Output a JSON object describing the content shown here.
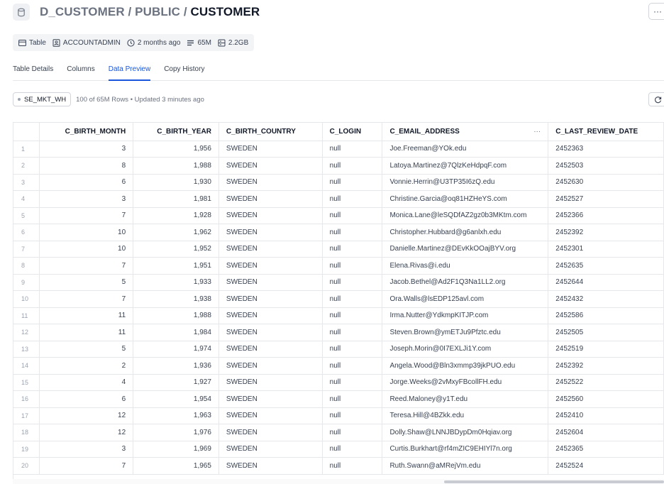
{
  "header": {
    "path_part1": "D_CUSTOMER / PUBLIC / ",
    "path_part2": "CUSTOMER",
    "more_label": "···"
  },
  "meta": {
    "type": "Table",
    "owner": "ACCOUNTADMIN",
    "updated": "2 months ago",
    "rows": "65M",
    "size": "2.2GB"
  },
  "tabs": [
    {
      "label": "Table Details"
    },
    {
      "label": "Columns"
    },
    {
      "label": "Data Preview"
    },
    {
      "label": "Copy History"
    }
  ],
  "active_tab": "Data Preview",
  "toolbar": {
    "warehouse": "SE_MKT_WH",
    "status": "100 of 65M Rows • Updated 3 minutes ago"
  },
  "grid": {
    "columns": [
      "",
      "C_BIRTH_MONTH",
      "C_BIRTH_YEAR",
      "C_BIRTH_COUNTRY",
      "C_LOGIN",
      "C_EMAIL_ADDRESS",
      "C_LAST_REVIEW_DATE"
    ],
    "column_menu": "···",
    "rows": [
      [
        "1",
        "3",
        "1,956",
        "SWEDEN",
        "null",
        "Joe.Freeman@YOk.edu",
        "2452363"
      ],
      [
        "2",
        "8",
        "1,988",
        "SWEDEN",
        "null",
        "Latoya.Martinez@7QlzKeHdpqF.com",
        "2452503"
      ],
      [
        "3",
        "6",
        "1,930",
        "SWEDEN",
        "null",
        "Vonnie.Herrin@U3TP35I6zQ.edu",
        "2452630"
      ],
      [
        "4",
        "3",
        "1,981",
        "SWEDEN",
        "null",
        "Christine.Garcia@oq81HZHeYS.com",
        "2452527"
      ],
      [
        "5",
        "7",
        "1,928",
        "SWEDEN",
        "null",
        "Monica.Lane@leSQDfAZ2gz0b3MKtm.com",
        "2452366"
      ],
      [
        "6",
        "10",
        "1,962",
        "SWEDEN",
        "null",
        "Christopher.Hubbard@g6anlxh.edu",
        "2452392"
      ],
      [
        "7",
        "10",
        "1,952",
        "SWEDEN",
        "null",
        "Danielle.Martinez@DEvKkOOajBYV.org",
        "2452301"
      ],
      [
        "8",
        "7",
        "1,951",
        "SWEDEN",
        "null",
        "Elena.Rivas@i.edu",
        "2452635"
      ],
      [
        "9",
        "5",
        "1,933",
        "SWEDEN",
        "null",
        "Jacob.Bethel@Ad2F1Q3Na1LL2.org",
        "2452644"
      ],
      [
        "10",
        "7",
        "1,938",
        "SWEDEN",
        "null",
        "Ora.Walls@lsEDP125avl.com",
        "2452432"
      ],
      [
        "11",
        "11",
        "1,988",
        "SWEDEN",
        "null",
        "Irma.Nutter@YdkmpKITJP.com",
        "2452586"
      ],
      [
        "12",
        "11",
        "1,984",
        "SWEDEN",
        "null",
        "Steven.Brown@ymETJu9Pfztc.edu",
        "2452505"
      ],
      [
        "13",
        "5",
        "1,974",
        "SWEDEN",
        "null",
        "Joseph.Morin@0I7EXLJi1Y.com",
        "2452519"
      ],
      [
        "14",
        "2",
        "1,936",
        "SWEDEN",
        "null",
        "Angela.Wood@Bln3xmmp39jkPUO.edu",
        "2452392"
      ],
      [
        "15",
        "4",
        "1,927",
        "SWEDEN",
        "null",
        "Jorge.Weeks@2vMxyFBcollFH.edu",
        "2452522"
      ],
      [
        "16",
        "6",
        "1,954",
        "SWEDEN",
        "null",
        "Reed.Maloney@y1T.edu",
        "2452560"
      ],
      [
        "17",
        "12",
        "1,963",
        "SWEDEN",
        "null",
        "Teresa.Hill@4BZkk.edu",
        "2452410"
      ],
      [
        "18",
        "12",
        "1,976",
        "SWEDEN",
        "null",
        "Dolly.Shaw@LNNJBDypDm0Hqiav.org",
        "2452604"
      ],
      [
        "19",
        "3",
        "1,969",
        "SWEDEN",
        "null",
        "Curtis.Burkhart@rf4mZIC9EHIYl7n.org",
        "2452365"
      ],
      [
        "20",
        "7",
        "1,965",
        "SWEDEN",
        "null",
        "Ruth.Swann@aMRejVm.edu",
        "2452524"
      ]
    ]
  },
  "icons": {
    "database": "database-icon",
    "table": "table-icon",
    "owner": "user-badge-icon",
    "clock": "clock-icon",
    "rows": "rows-icon",
    "storage": "storage-icon",
    "refresh": "refresh-icon"
  },
  "colors": {
    "accent": "#1a56db",
    "border": "#e5e7eb",
    "muted": "#6b7280"
  }
}
